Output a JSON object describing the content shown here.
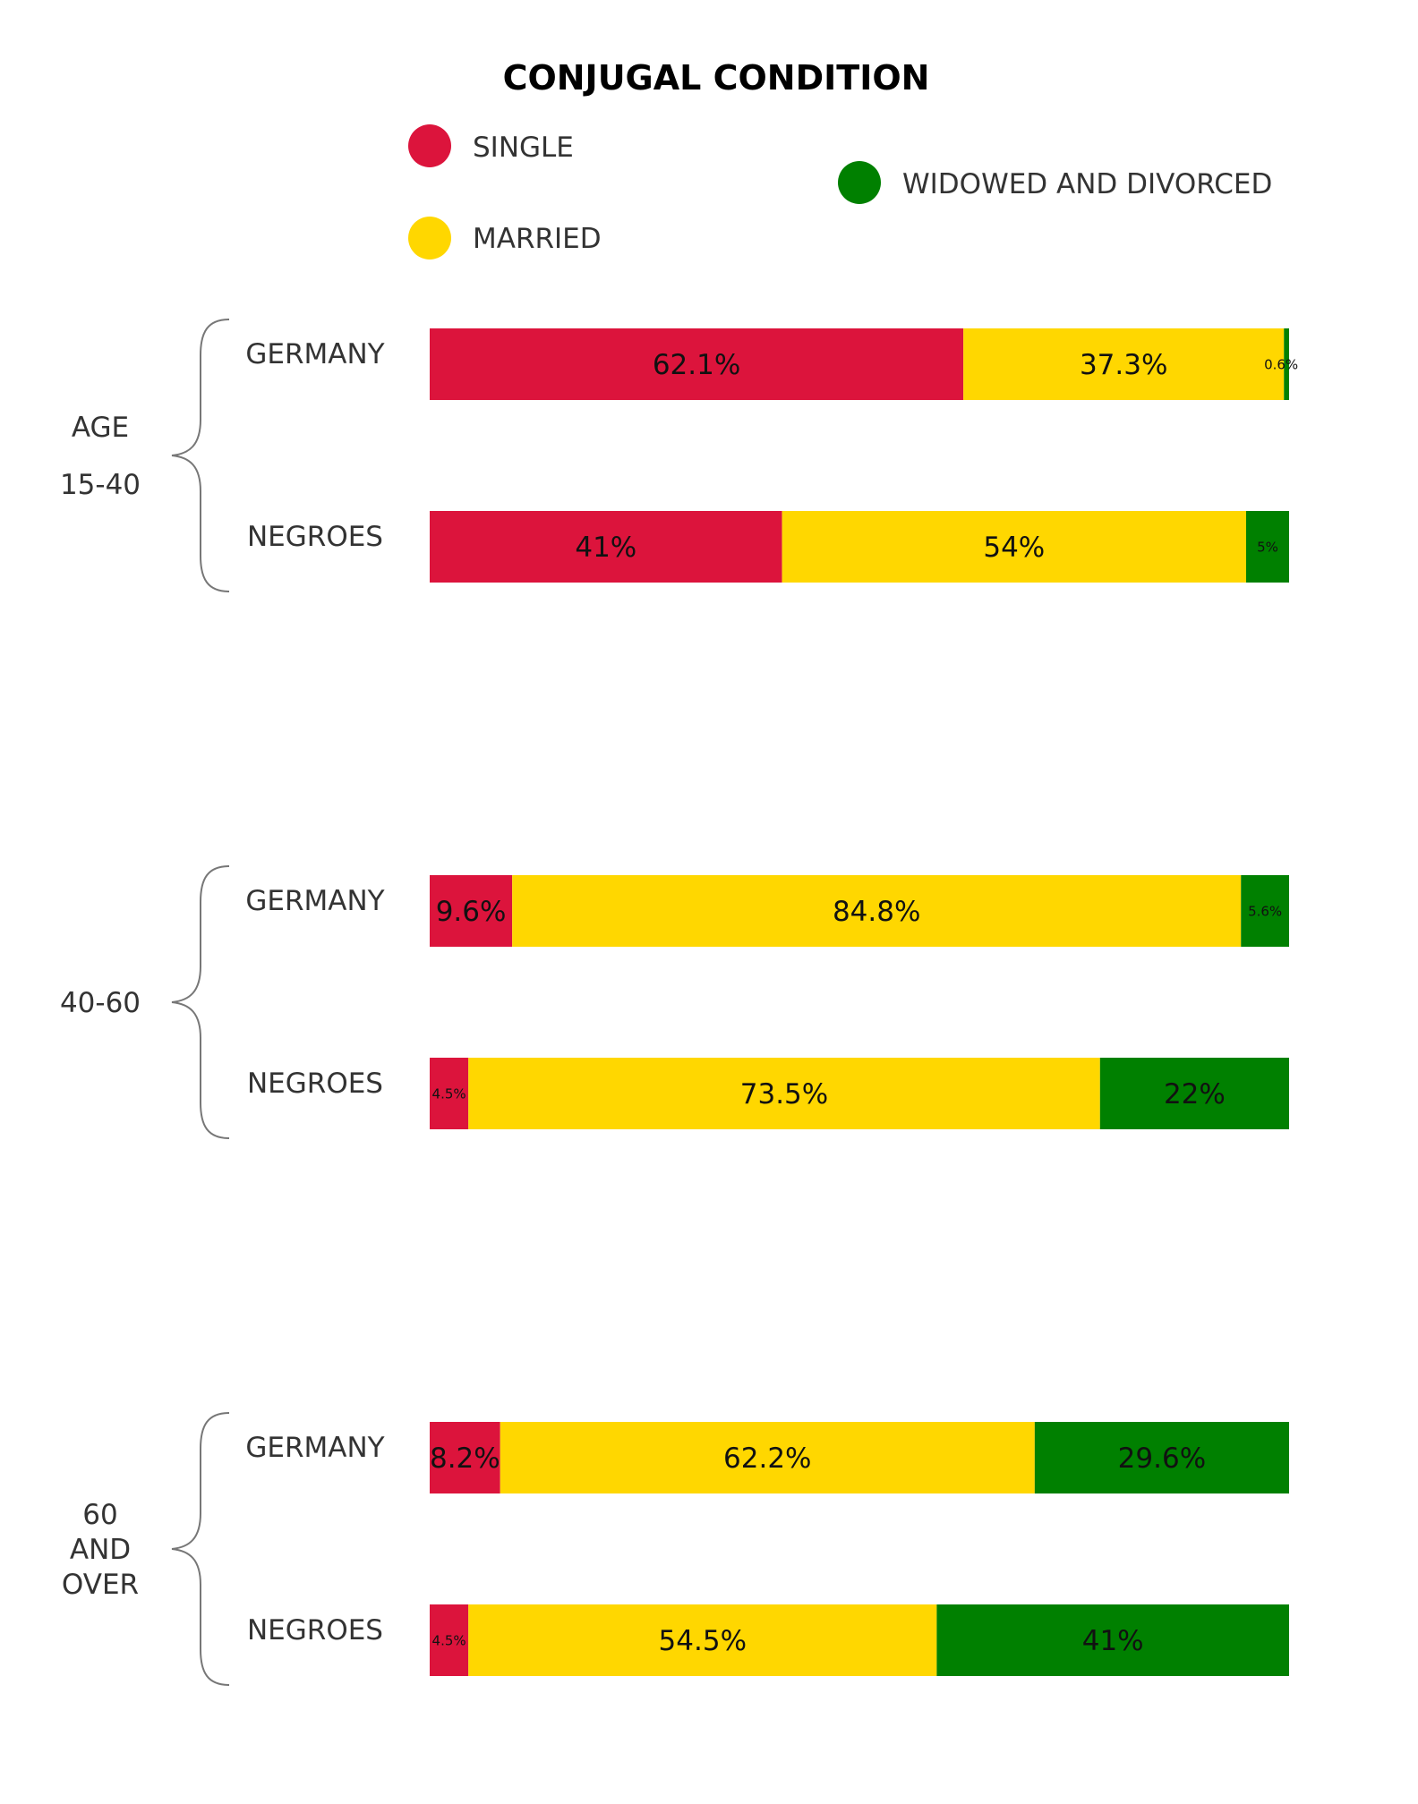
{
  "chart_data": {
    "type": "bar",
    "orientation": "horizontal",
    "stacked": true,
    "title": "CONJUGAL CONDITION",
    "legend": [
      {
        "name": "SINGLE",
        "color": "#DC143C"
      },
      {
        "name": "MARRIED",
        "color": "#FFD700"
      },
      {
        "name": "WIDOWED AND DIVORCED",
        "color": "#008000"
      }
    ],
    "groups": [
      {
        "label_lines": [
          "AGE",
          "15-40"
        ],
        "rows": [
          {
            "label": "GERMANY",
            "values": [
              62.1,
              37.3,
              0.6
            ],
            "labels": [
              "62.1%",
              "37.3%",
              "0.6%"
            ]
          },
          {
            "label": "NEGROES",
            "values": [
              41,
              54,
              5
            ],
            "labels": [
              "41%",
              "54%",
              "5%"
            ]
          }
        ]
      },
      {
        "label_lines": [
          "40-60"
        ],
        "rows": [
          {
            "label": "GERMANY",
            "values": [
              9.6,
              84.8,
              5.6
            ],
            "labels": [
              "9.6%",
              "84.8%",
              "5.6%"
            ]
          },
          {
            "label": "NEGROES",
            "values": [
              4.5,
              73.5,
              22
            ],
            "labels": [
              "4.5%",
              "73.5%",
              "22%"
            ]
          }
        ]
      },
      {
        "label_lines": [
          "60",
          "AND",
          "OVER"
        ],
        "rows": [
          {
            "label": "GERMANY",
            "values": [
              8.2,
              62.2,
              29.6
            ],
            "labels": [
              "8.2%",
              "62.2%",
              "29.6%"
            ]
          },
          {
            "label": "NEGROES",
            "values": [
              4.5,
              54.5,
              41
            ],
            "labels": [
              "4.5%",
              "54.5%",
              "41%"
            ]
          }
        ]
      }
    ],
    "xlim": [
      0,
      100
    ],
    "grid": false
  }
}
